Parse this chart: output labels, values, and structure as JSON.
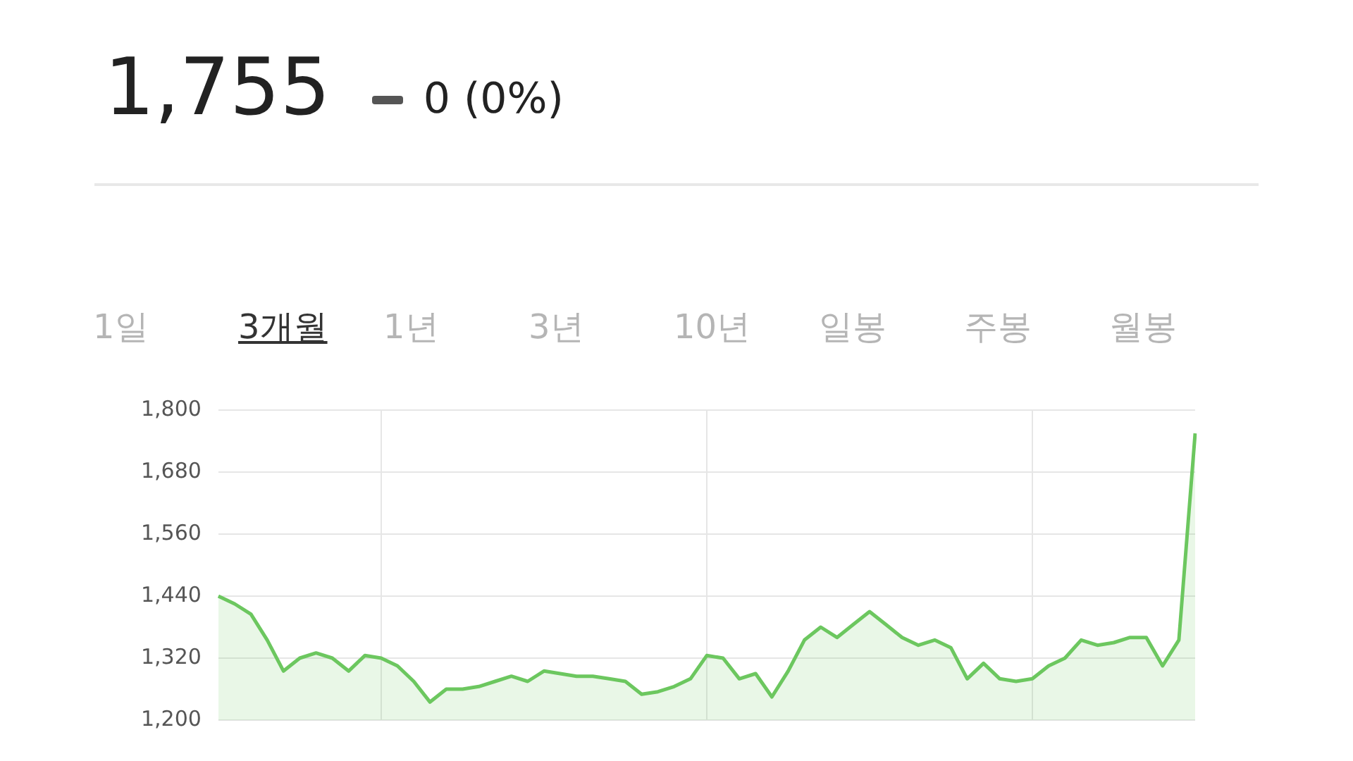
{
  "chart_data": {
    "type": "area",
    "title": "1,755",
    "subtitle": "0 (0%)",
    "annotations": [
      "1일",
      "3개월",
      "1년",
      "3년",
      "10년",
      "일봉",
      "주봉",
      "월봉"
    ],
    "categories": [
      null,
      null,
      null,
      null,
      null,
      null,
      null,
      null,
      null,
      null,
      null,
      null,
      null,
      null,
      null,
      null,
      null,
      null,
      null,
      null,
      null,
      null,
      null,
      null,
      null,
      null,
      null,
      null,
      null,
      null,
      null,
      null,
      null,
      null,
      null,
      null,
      null,
      null,
      null,
      null,
      null,
      null,
      null,
      null,
      null,
      null,
      null,
      null,
      null,
      null,
      null,
      null,
      null,
      null,
      null,
      null,
      null,
      null,
      null,
      null,
      null
    ],
    "series": [
      {
        "color": "#6cc75f",
        "values": [
          1440,
          1425,
          1405,
          1355,
          1295,
          1320,
          1330,
          1320,
          1295,
          1325,
          1320,
          1305,
          1275,
          1235,
          1260,
          1260,
          1265,
          1275,
          1285,
          1275,
          1295,
          1290,
          1285,
          1285,
          1280,
          1275,
          1250,
          1255,
          1265,
          1280,
          1325,
          1320,
          1280,
          1290,
          1245,
          1295,
          1355,
          1380,
          1360,
          1385,
          1410,
          1385,
          1360,
          1345,
          1355,
          1340,
          1280,
          1310,
          1280,
          1275,
          1280,
          1305,
          1320,
          1355,
          1345,
          1350,
          1360,
          1360,
          1305,
          1355,
          1755
        ]
      }
    ],
    "ylim": [
      1200,
      1800
    ],
    "yticks": [
      {
        "value": 1200,
        "label": "1,200"
      },
      {
        "value": 1320,
        "label": "1,320"
      },
      {
        "value": 1440,
        "label": "1,440"
      },
      {
        "value": 1560,
        "label": "1,560"
      },
      {
        "value": 1680,
        "label": "1,680"
      },
      {
        "value": 1800,
        "label": "1,800"
      }
    ],
    "grid": true,
    "legend": false,
    "marker": "none",
    "line_style": "solid"
  }
}
